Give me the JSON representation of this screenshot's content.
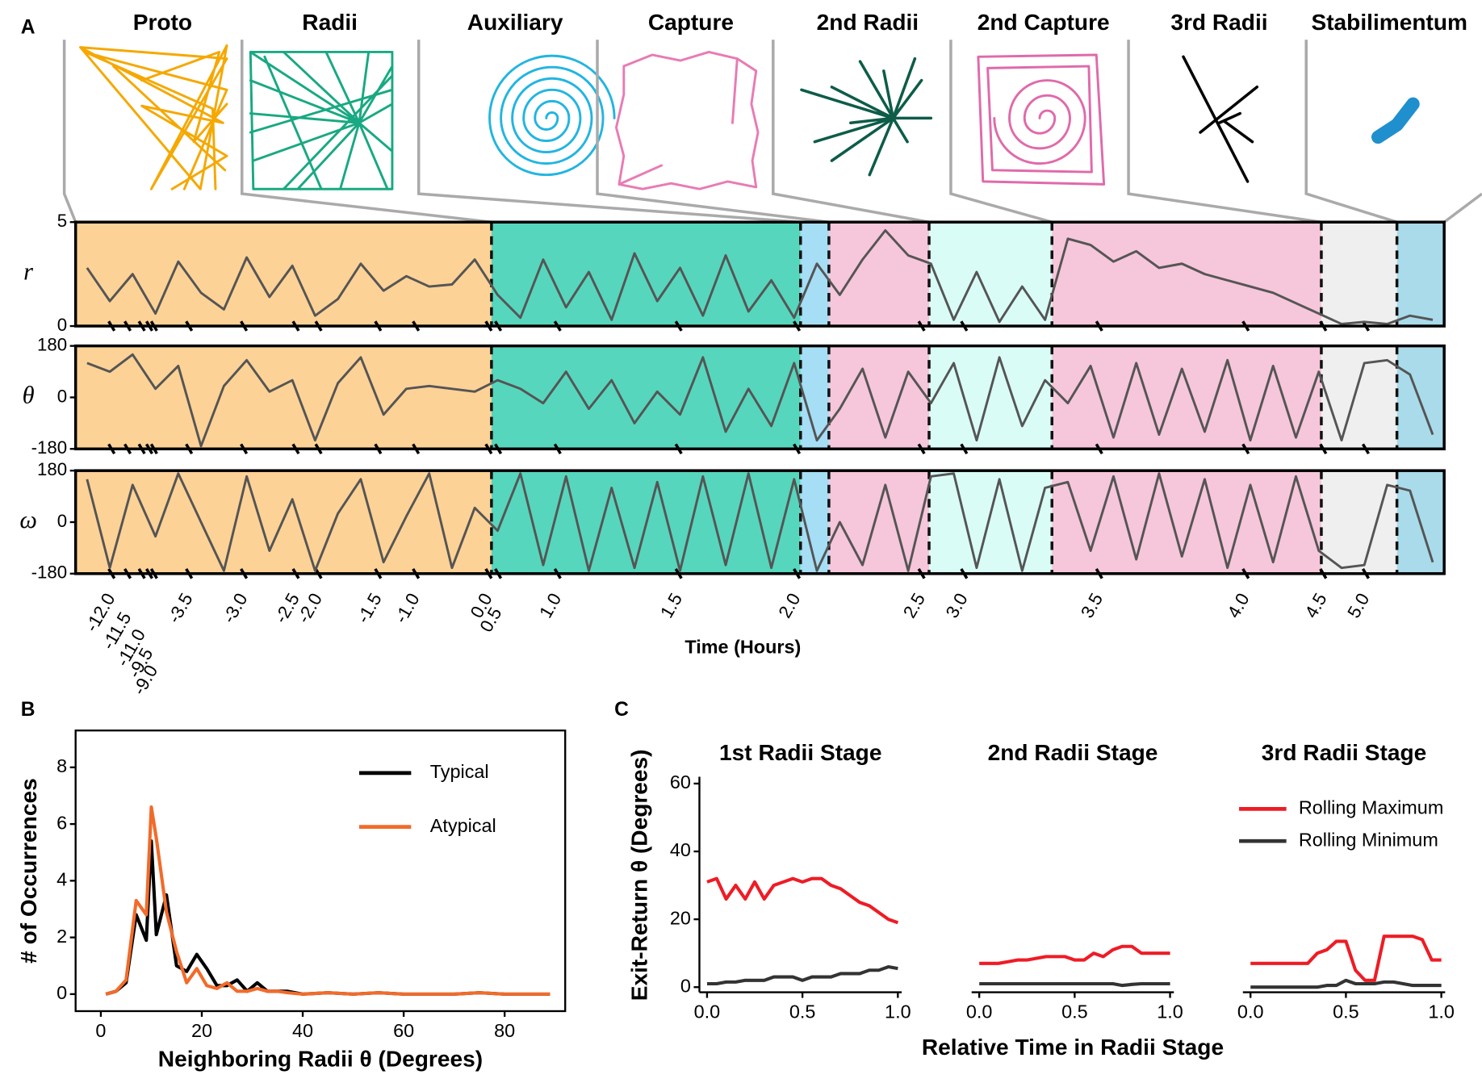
{
  "panels": [
    "A",
    "B",
    "C"
  ],
  "stages": {
    "titles": [
      "Proto",
      "Radii",
      "Auxiliary",
      "Capture",
      "2nd Radii",
      "2nd Capture",
      "3rd Radii",
      "Stabilimentum"
    ],
    "colors": [
      "#fdd296",
      "#56d6bd",
      "#a5def5",
      "#f6c6da",
      "#dafcf7",
      "#f6c6da",
      "#efefef",
      "#a9dbea"
    ]
  },
  "chart_data": [
    {
      "type": "line",
      "ylabel": "r",
      "ylim": [
        0,
        5
      ],
      "yticks": [
        5,
        0
      ],
      "series": [
        {
          "color": "#555555",
          "values": [
            2.8,
            1.2,
            2.5,
            0.6,
            3.1,
            1.6,
            0.8,
            3.3,
            1.4,
            2.9,
            0.5,
            1.3,
            3.0,
            1.7,
            2.4,
            1.9,
            2.0,
            3.2,
            1.5,
            0.4,
            3.2,
            0.9,
            2.6,
            0.3,
            3.5,
            1.2,
            2.8,
            0.5,
            3.4,
            0.7,
            2.2,
            0.4,
            3.0,
            1.5,
            3.2,
            4.6,
            3.4,
            3.0,
            0.3,
            2.6,
            0.2,
            1.9,
            0.3,
            4.2,
            3.9,
            3.1,
            3.6,
            2.8,
            3.0,
            2.5,
            2.2,
            1.9,
            1.6,
            1.1,
            0.6,
            0.1,
            0.2,
            0.1,
            0.5,
            0.3
          ]
        }
      ]
    },
    {
      "type": "line",
      "ylabel": "θ",
      "ylim": [
        -180,
        180
      ],
      "yticks": [
        180,
        0,
        -180
      ],
      "series": [
        {
          "color": "#555555",
          "values": [
            120,
            90,
            150,
            30,
            110,
            -170,
            40,
            130,
            20,
            60,
            -150,
            50,
            140,
            -60,
            30,
            40,
            30,
            20,
            60,
            30,
            -20,
            90,
            -40,
            60,
            -90,
            20,
            -60,
            140,
            -120,
            30,
            -100,
            120,
            -150,
            -40,
            100,
            -140,
            90,
            -20,
            120,
            -150,
            140,
            -100,
            60,
            -20,
            110,
            -140,
            120,
            -130,
            100,
            -120,
            130,
            -150,
            110,
            -140,
            90,
            -150,
            120,
            130,
            80,
            -130
          ]
        }
      ]
    },
    {
      "type": "line",
      "ylabel": "ω",
      "xlabel": "Time (Hours)",
      "ylim": [
        -180,
        180
      ],
      "yticks": [
        180,
        0,
        -180
      ],
      "xticks": [
        {
          "value": -12,
          "label": "-12.0"
        },
        {
          "value": -11.5,
          "label": "-11.5"
        },
        {
          "value": -11,
          "label": "-11.0"
        },
        {
          "value": -9.5,
          "label": "-9.5"
        },
        {
          "value": -9,
          "label": "-9.0"
        },
        {
          "value": -3.5,
          "label": "-3.5"
        },
        {
          "value": -3,
          "label": "-3.0"
        },
        {
          "value": -2.5,
          "label": "-2.5"
        },
        {
          "value": -2,
          "label": "-2.0"
        },
        {
          "value": -1.5,
          "label": "-1.5"
        },
        {
          "value": -1,
          "label": "-1.0"
        },
        {
          "value": 0,
          "label": "0.0"
        },
        {
          "value": 0.5,
          "label": "0.5"
        },
        {
          "value": 1,
          "label": "1.0"
        },
        {
          "value": 1.5,
          "label": "1.5"
        },
        {
          "value": 2,
          "label": "2.0"
        },
        {
          "value": 2.5,
          "label": "2.5"
        },
        {
          "value": 3,
          "label": "3.0"
        },
        {
          "value": 3.5,
          "label": "3.5"
        },
        {
          "value": 4,
          "label": "4.0"
        },
        {
          "value": 4.5,
          "label": "4.5"
        },
        {
          "value": 5,
          "label": "5.0"
        }
      ],
      "series": [
        {
          "color": "#555555",
          "values": [
            150,
            -160,
            130,
            -50,
            170,
            0,
            -170,
            160,
            -100,
            80,
            -170,
            30,
            150,
            -140,
            20,
            170,
            -160,
            50,
            -30,
            170,
            -150,
            160,
            -170,
            120,
            -160,
            140,
            -170,
            160,
            -150,
            170,
            -160,
            150,
            -170,
            0,
            -150,
            130,
            -170,
            160,
            170,
            -160,
            150,
            -170,
            120,
            140,
            -100,
            160,
            -130,
            170,
            -120,
            150,
            -160,
            130,
            -140,
            160,
            -100,
            -160,
            -150,
            130,
            110,
            -140
          ]
        }
      ]
    },
    {
      "type": "line",
      "xlabel": "Neighboring Radii θ (Degrees)",
      "ylabel": "# of Occurrences",
      "xlim": [
        -5,
        92
      ],
      "ylim": [
        -0.6,
        9.3
      ],
      "xticks": [
        0,
        20,
        40,
        60,
        80
      ],
      "yticks": [
        0,
        2,
        4,
        6,
        8
      ],
      "legend": "upper right",
      "x": [
        1,
        3,
        5,
        7,
        9,
        10,
        11,
        13,
        15,
        17,
        19,
        21,
        23,
        25,
        27,
        29,
        31,
        33,
        35,
        37,
        40,
        45,
        50,
        55,
        60,
        65,
        70,
        75,
        80,
        85,
        89
      ],
      "series": [
        {
          "name": "Typical",
          "color": "#000000",
          "values": [
            0,
            0.1,
            0.4,
            2.8,
            1.9,
            5.4,
            2.1,
            3.5,
            1.0,
            0.8,
            1.4,
            0.9,
            0.3,
            0.3,
            0.5,
            0.1,
            0.4,
            0.1,
            0.1,
            0.1,
            0,
            0.05,
            0,
            0.05,
            0,
            0,
            0,
            0.05,
            0,
            0,
            0
          ]
        },
        {
          "name": "Atypical",
          "color": "#f26b2a",
          "values": [
            0,
            0.1,
            0.5,
            3.3,
            2.8,
            6.6,
            5.5,
            2.9,
            1.5,
            0.4,
            0.9,
            0.3,
            0.2,
            0.4,
            0.1,
            0.1,
            0.2,
            0.1,
            0.1,
            0.05,
            0,
            0.05,
            0,
            0.05,
            0,
            0,
            0,
            0.05,
            0,
            0,
            0
          ]
        }
      ]
    },
    {
      "type": "line",
      "title": "1st Radii Stage",
      "ylabel": "Exit-Return θ (Degrees)",
      "xlim": [
        -0.04,
        1.02
      ],
      "ylim": [
        -1.5,
        62
      ],
      "yticks": [
        0,
        20,
        40,
        60
      ],
      "xticks": [
        {
          "value": 0,
          "label": "0.0"
        },
        {
          "value": 0.5,
          "label": "0.5"
        },
        {
          "value": 1,
          "label": "1.0"
        }
      ],
      "x": [
        0,
        0.05,
        0.1,
        0.15,
        0.2,
        0.25,
        0.3,
        0.35,
        0.4,
        0.45,
        0.5,
        0.55,
        0.6,
        0.65,
        0.7,
        0.75,
        0.8,
        0.85,
        0.9,
        0.95,
        1
      ],
      "series": [
        {
          "color": "#ee1c25",
          "values": [
            31,
            32,
            26,
            30,
            26,
            31,
            26,
            30,
            31,
            32,
            31,
            32,
            32,
            30,
            29,
            27,
            25,
            24,
            22,
            20,
            19
          ]
        },
        {
          "color": "#333333",
          "values": [
            1,
            1,
            1.5,
            1.5,
            2,
            2,
            2,
            3,
            3,
            3,
            2,
            3,
            3,
            3,
            4,
            4,
            4,
            5,
            5,
            6,
            5.5
          ]
        }
      ]
    },
    {
      "type": "line",
      "title": "2nd Radii Stage",
      "xlabel": "Relative Time in Radii Stage",
      "xlim": [
        -0.04,
        1.02
      ],
      "ylim": [
        -1.5,
        62
      ],
      "xticks": [
        {
          "value": 0,
          "label": "0.0"
        },
        {
          "value": 0.5,
          "label": "0.5"
        },
        {
          "value": 1,
          "label": "1.0"
        }
      ],
      "x": [
        0,
        0.05,
        0.1,
        0.15,
        0.2,
        0.25,
        0.3,
        0.35,
        0.4,
        0.45,
        0.5,
        0.55,
        0.6,
        0.65,
        0.7,
        0.75,
        0.8,
        0.85,
        0.9,
        0.95,
        1
      ],
      "series": [
        {
          "color": "#ee1c25",
          "values": [
            7,
            7,
            7,
            7.5,
            8,
            8,
            8.5,
            9,
            9,
            9,
            8,
            8,
            10,
            9,
            11,
            12,
            12,
            10,
            10,
            10,
            10
          ]
        },
        {
          "color": "#333333",
          "values": [
            1,
            1,
            1,
            1,
            1,
            1,
            1,
            1,
            1,
            1,
            1,
            1,
            1,
            1,
            1,
            0.5,
            0.8,
            1,
            1,
            1,
            1
          ]
        }
      ]
    },
    {
      "type": "line",
      "title": "3rd Radii Stage",
      "legend": "upper right",
      "xlim": [
        -0.04,
        1.02
      ],
      "ylim": [
        -1.5,
        62
      ],
      "xticks": [
        {
          "value": 0,
          "label": "0.0"
        },
        {
          "value": 0.5,
          "label": "0.5"
        },
        {
          "value": 1,
          "label": "1.0"
        }
      ],
      "x": [
        0,
        0.05,
        0.1,
        0.15,
        0.2,
        0.25,
        0.3,
        0.35,
        0.4,
        0.45,
        0.5,
        0.55,
        0.6,
        0.65,
        0.7,
        0.75,
        0.8,
        0.85,
        0.9,
        0.95,
        1
      ],
      "series": [
        {
          "name": "Rolling Maximum",
          "color": "#ee1c25",
          "values": [
            7,
            7,
            7,
            7,
            7,
            7,
            7,
            10,
            11,
            13.5,
            13.5,
            5,
            2,
            2,
            15,
            15,
            15,
            15,
            14,
            8,
            8
          ]
        },
        {
          "name": "Rolling Minimum",
          "color": "#333333",
          "values": [
            0,
            0,
            0,
            0,
            0,
            0,
            0,
            0,
            0.5,
            0.5,
            2,
            1,
            1,
            1,
            1.5,
            1.5,
            1,
            0.5,
            0.5,
            0.5,
            0.5
          ]
        }
      ]
    }
  ]
}
